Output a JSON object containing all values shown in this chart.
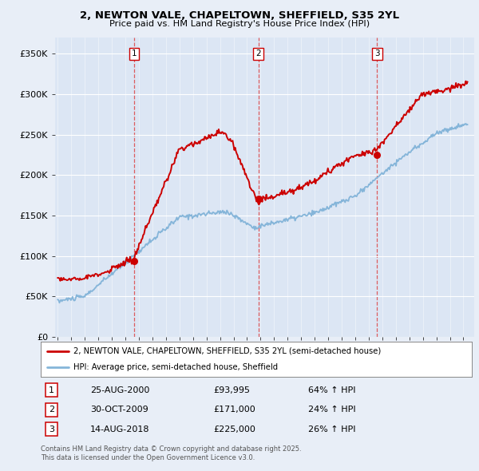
{
  "title_line1": "2, NEWTON VALE, CHAPELTOWN, SHEFFIELD, S35 2YL",
  "title_line2": "Price paid vs. HM Land Registry's House Price Index (HPI)",
  "background_color": "#e8eef7",
  "plot_bg_color": "#dce6f4",
  "legend_line1": "2, NEWTON VALE, CHAPELTOWN, SHEFFIELD, S35 2YL (semi-detached house)",
  "legend_line2": "HPI: Average price, semi-detached house, Sheffield",
  "transactions": [
    {
      "label": "1",
      "date_num": 2000.65,
      "price": 93995,
      "pct": "64%",
      "date_str": "25-AUG-2000"
    },
    {
      "label": "2",
      "date_num": 2009.83,
      "price": 171000,
      "pct": "24%",
      "date_str": "30-OCT-2009"
    },
    {
      "label": "3",
      "date_num": 2018.62,
      "price": 225000,
      "pct": "26%",
      "date_str": "14-AUG-2018"
    }
  ],
  "footnote1": "Contains HM Land Registry data © Crown copyright and database right 2025.",
  "footnote2": "This data is licensed under the Open Government Licence v3.0.",
  "ylim": [
    0,
    370000
  ],
  "xlim_start": 1994.8,
  "xlim_end": 2025.8,
  "yticks": [
    0,
    50000,
    100000,
    150000,
    200000,
    250000,
    300000,
    350000
  ],
  "ytick_labels": [
    "£0",
    "£50K",
    "£100K",
    "£150K",
    "£200K",
    "£250K",
    "£300K",
    "£350K"
  ],
  "red_color": "#cc0000",
  "blue_color": "#85b5d9",
  "dashed_color": "#dd4444"
}
